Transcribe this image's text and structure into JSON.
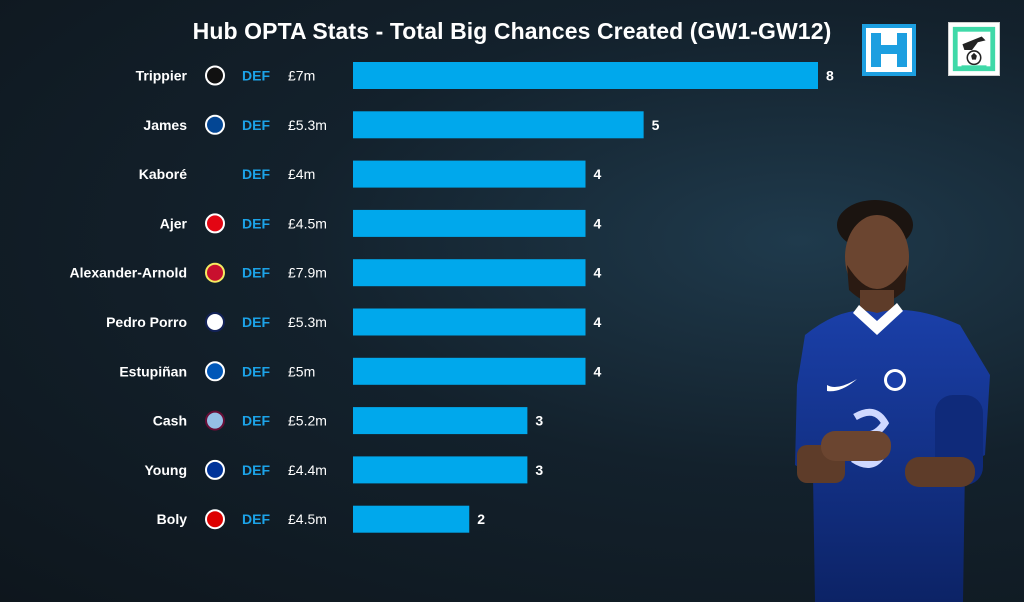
{
  "title": "Hub OPTA Stats - Total Big Chances Created (GW1-GW12)",
  "colors": {
    "bar": "#00a8ec",
    "position": "#1ca3e8",
    "text": "#ffffff",
    "background": "#13212c"
  },
  "icons": [
    "hub-logo-icon",
    "football-badge-icon",
    "player-photo"
  ],
  "chart_data": {
    "type": "bar",
    "orientation": "horizontal",
    "title": "Hub OPTA Stats - Total Big Chances Created (GW1-GW12)",
    "xlim": [
      0,
      8
    ],
    "grid": false,
    "rows": [
      {
        "name": "Trippier",
        "club_icon": "newcastle-crest-icon",
        "position": "DEF",
        "price": "£7m",
        "value": 8
      },
      {
        "name": "James",
        "club_icon": "chelsea-crest-icon",
        "position": "DEF",
        "price": "£5.3m",
        "value": 5
      },
      {
        "name": "Kaboré",
        "club_icon": "",
        "position": "DEF",
        "price": "£4m",
        "value": 4
      },
      {
        "name": "Ajer",
        "club_icon": "brentford-crest-icon",
        "position": "DEF",
        "price": "£4.5m",
        "value": 4
      },
      {
        "name": "Alexander-Arnold",
        "club_icon": "liverpool-crest-icon",
        "position": "DEF",
        "price": "£7.9m",
        "value": 4
      },
      {
        "name": "Pedro Porro",
        "club_icon": "tottenham-crest-icon",
        "position": "DEF",
        "price": "£5.3m",
        "value": 4
      },
      {
        "name": "Estupiñan",
        "club_icon": "brighton-crest-icon",
        "position": "DEF",
        "price": "£5m",
        "value": 4
      },
      {
        "name": "Cash",
        "club_icon": "aston-villa-crest-icon",
        "position": "DEF",
        "price": "£5.2m",
        "value": 3
      },
      {
        "name": "Young",
        "club_icon": "everton-crest-icon",
        "position": "DEF",
        "price": "£4.4m",
        "value": 3
      },
      {
        "name": "Boly",
        "club_icon": "nottingham-forest-crest-icon",
        "position": "DEF",
        "price": "£4.5m",
        "value": 2
      }
    ]
  }
}
